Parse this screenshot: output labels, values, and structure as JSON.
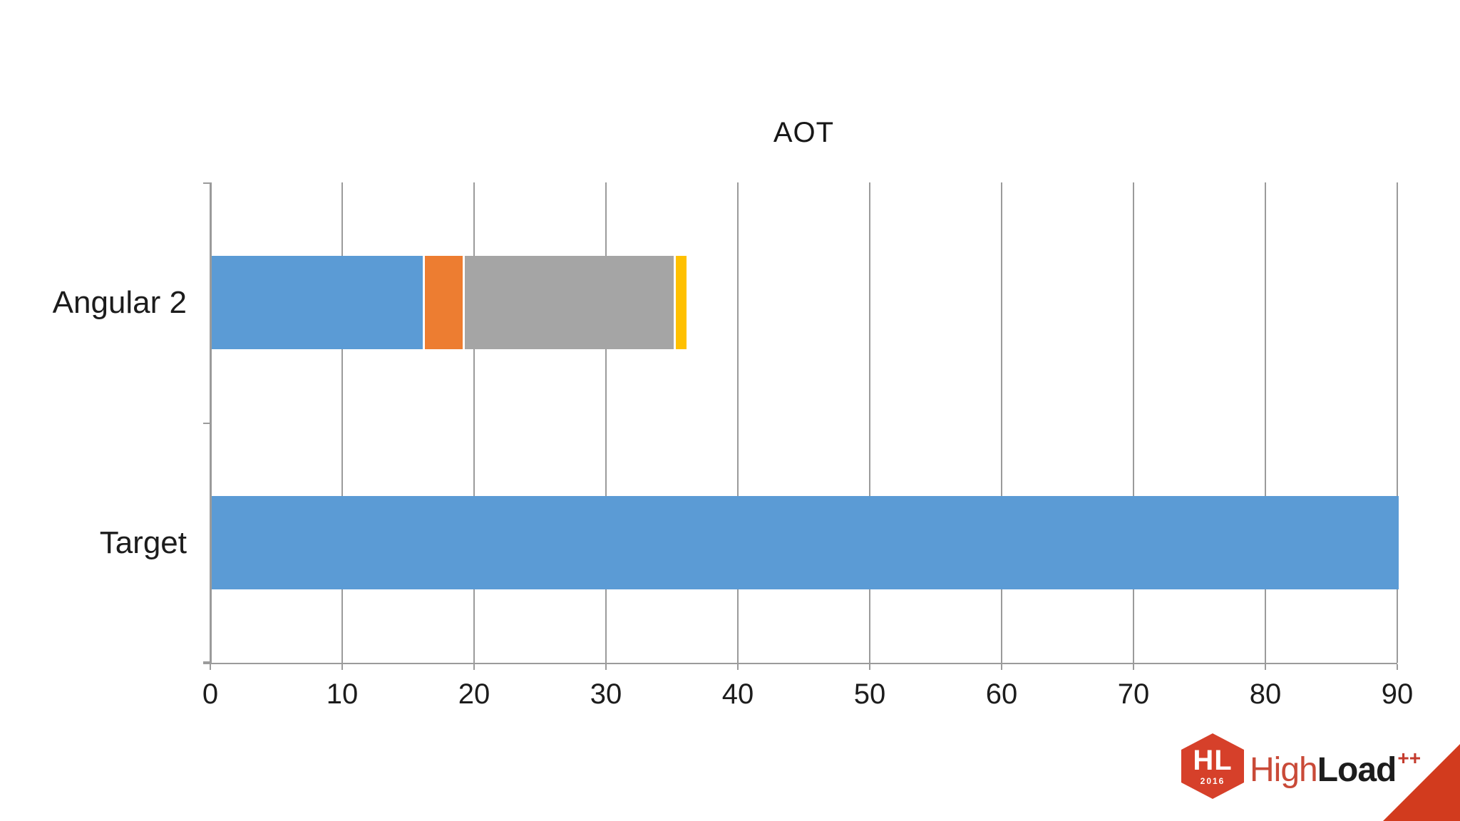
{
  "chart_data": {
    "type": "bar",
    "orientation": "horizontal",
    "stacked": true,
    "title": "AOT",
    "categories": [
      "Angular 2",
      "Target"
    ],
    "series": [
      {
        "name": "series-1",
        "color": "#5B9BD5",
        "values": [
          16,
          90
        ]
      },
      {
        "name": "series-2",
        "color": "#ED7D31",
        "values": [
          3,
          0
        ]
      },
      {
        "name": "series-3",
        "color": "#A5A5A5",
        "values": [
          16,
          0
        ]
      },
      {
        "name": "series-4",
        "color": "#FFC000",
        "values": [
          1,
          0
        ]
      }
    ],
    "xlim": [
      0,
      90
    ],
    "x_ticks": [
      0,
      10,
      20,
      30,
      40,
      50,
      60,
      70,
      80,
      90
    ],
    "grid": "vertical",
    "legend": "none",
    "grid_color": "#9b9b9b",
    "bar_totals": {
      "Angular 2": 36,
      "Target": 90
    }
  },
  "logo": {
    "badge_text": "HL",
    "badge_year": "2016",
    "brand_light": "High",
    "brand_bold": "Load",
    "brand_super": "++",
    "badge_color": "#D6402A",
    "light_text_color": "#C94A38",
    "super_color": "#C43B2D",
    "triangle_color": "#D23B1E"
  }
}
